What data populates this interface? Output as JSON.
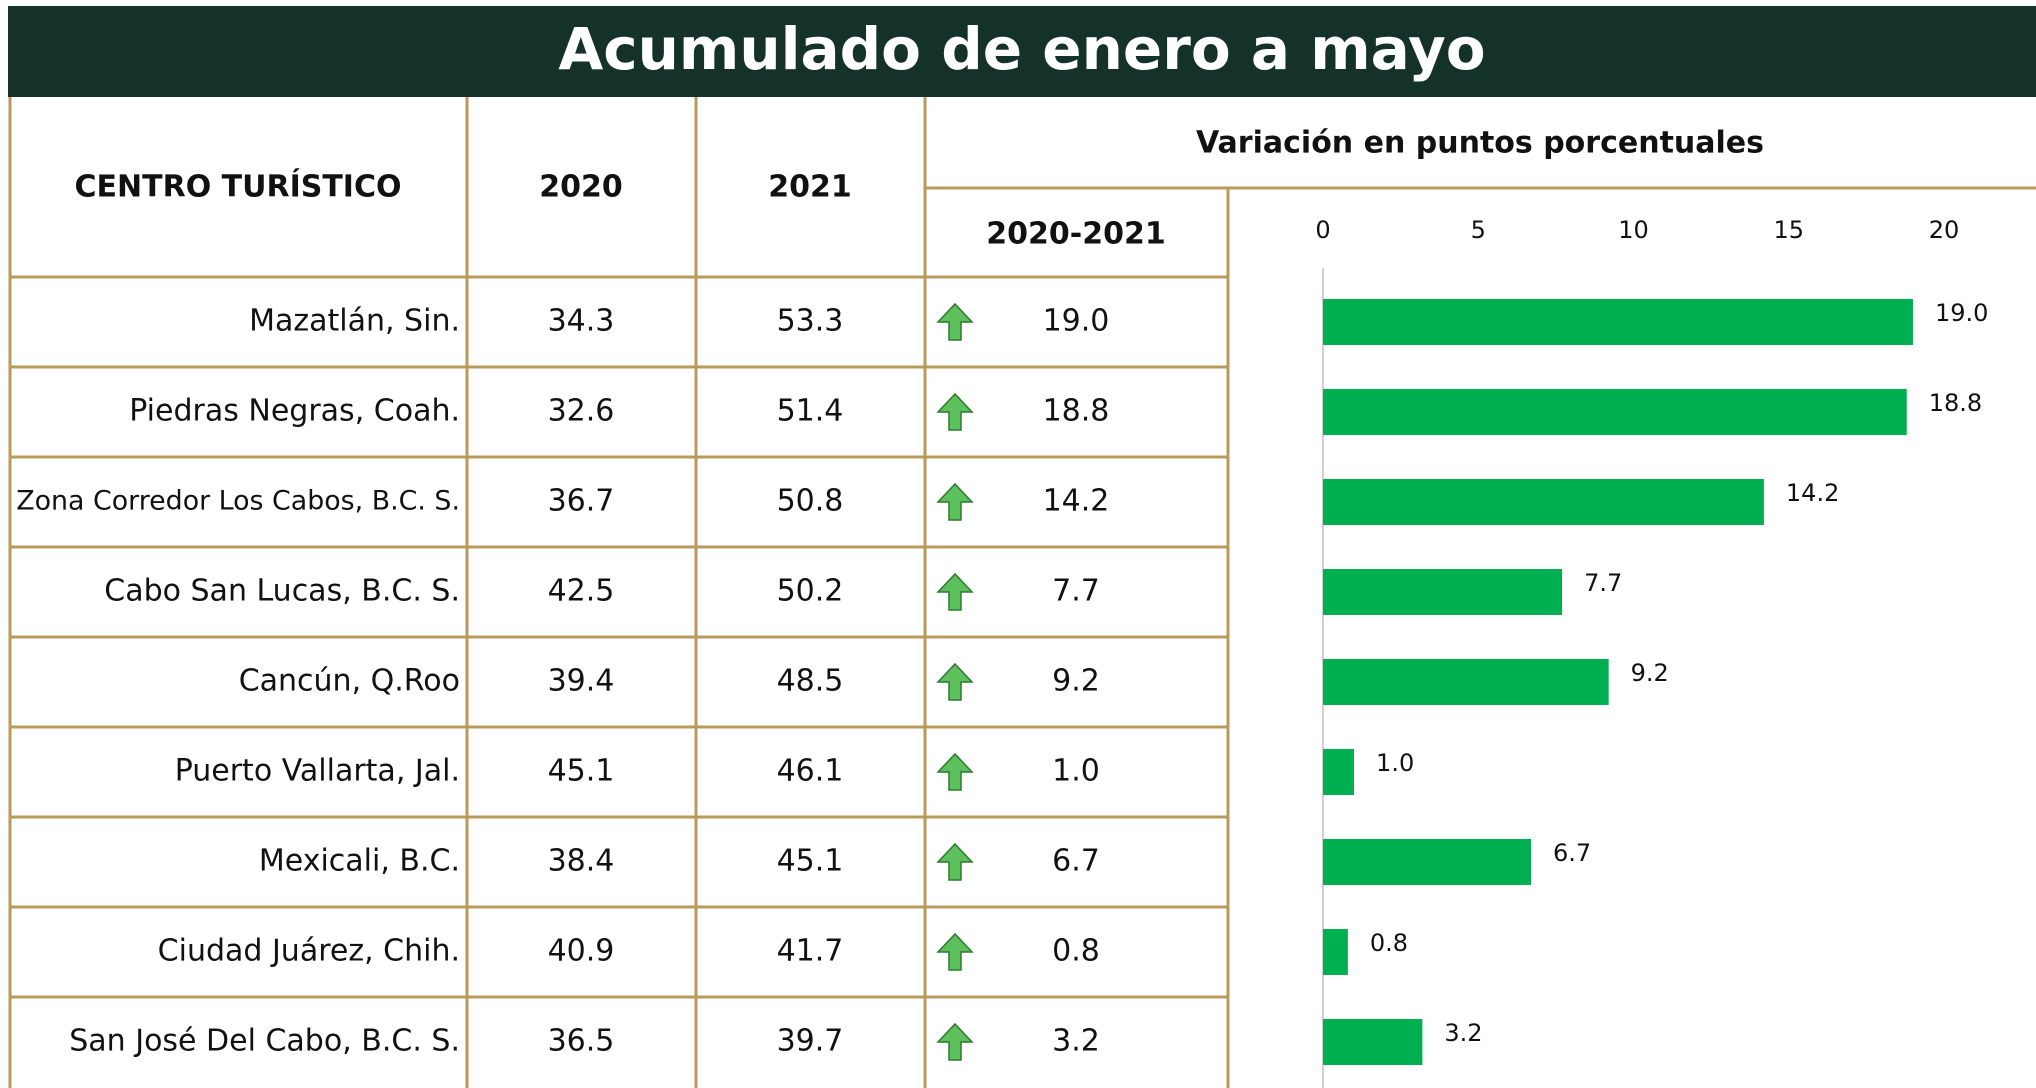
{
  "title": "Acumulado de enero a mayo",
  "table": {
    "headers": [
      "CENTRO TURÍSTICO",
      "2020",
      "2021",
      "2020-2021"
    ],
    "rows": [
      [
        "Mazatlán, Sin.",
        "34.3",
        "53.3"
      ],
      [
        "Piedras Negras, Coah.",
        "32.6",
        "51.4"
      ],
      [
        "Zona Corredor Los Cabos, B.C. S.",
        "36.7",
        "50.8"
      ],
      [
        "Cabo San Lucas, B.C. S.",
        "42.5",
        "50.2"
      ],
      [
        "Cancún, Q.Roo",
        "39.4",
        "48.5"
      ],
      [
        "Puerto Vallarta, Jal.",
        "45.1",
        "46.1"
      ],
      [
        "Mexicali, B.C.",
        "38.4",
        "45.1"
      ],
      [
        "Ciudad Juárez, Chih.",
        "40.9",
        "41.7"
      ],
      [
        "San José Del Cabo, B.C. S.",
        "36.5",
        "39.7"
      ]
    ]
  },
  "chart_data": {
    "type": "bar",
    "orientation": "horizontal",
    "title": "Variación en puntos porcentuales",
    "values": [
      19.0,
      18.8,
      14.2,
      7.7,
      9.2,
      1.0,
      6.7,
      0.8,
      3.2
    ],
    "value_labels": [
      "19.0",
      "18.8",
      "14.2",
      "7.7",
      "9.2",
      "1.0",
      "6.7",
      "0.8",
      "3.2"
    ],
    "color": "#00b050",
    "xlim": [
      0,
      20
    ],
    "xticks": [
      0,
      5,
      10,
      15,
      20
    ]
  }
}
